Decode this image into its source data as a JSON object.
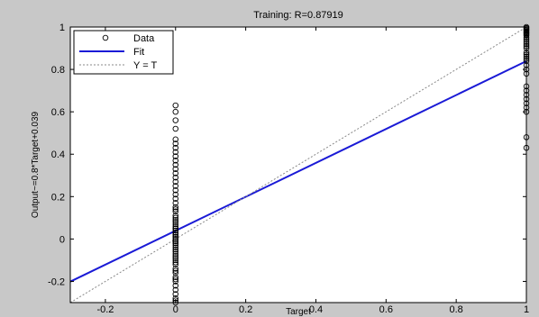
{
  "chart_data": {
    "type": "scatter",
    "title": "Training: R=0.87919",
    "xlabel": "Target",
    "ylabel": "Output~=0.8*Target+0.039",
    "xlim": [
      -0.3,
      1.0
    ],
    "ylim": [
      -0.3,
      1.0
    ],
    "xticks": [
      -0.2,
      0,
      0.2,
      0.4,
      0.6,
      0.8,
      1
    ],
    "xtick_labels": [
      "-0.2",
      "0",
      "0.2",
      "0.4",
      "0.6",
      "0.8",
      "1"
    ],
    "yticks": [
      -0.2,
      0,
      0.2,
      0.4,
      0.6,
      0.8,
      1
    ],
    "ytick_labels": [
      "-0.2",
      "0",
      "0.2",
      "0.4",
      "0.6",
      "0.8",
      "1"
    ],
    "grid": false,
    "legend_position": "top-left",
    "legend": [
      "Data",
      "Fit",
      "Y = T"
    ],
    "series": [
      {
        "name": "Data",
        "kind": "markers",
        "marker": "circle",
        "color": "#000000",
        "x": [
          0,
          0,
          0,
          0,
          0,
          0,
          0,
          0,
          0,
          0,
          0,
          0,
          0,
          0,
          0,
          0,
          0,
          0,
          0,
          0,
          0,
          0,
          0,
          0,
          0,
          0,
          0,
          0,
          0,
          0,
          0,
          0,
          0,
          0,
          0,
          0,
          0,
          0,
          0,
          0,
          0,
          0,
          0,
          0,
          0,
          0,
          0,
          0,
          0,
          0,
          0,
          0,
          0,
          0,
          0,
          0,
          0,
          0,
          0,
          0,
          0,
          0,
          0,
          0,
          0,
          0,
          1,
          1,
          1,
          1,
          1,
          1,
          1,
          1,
          1,
          1,
          1,
          1,
          1,
          1,
          1,
          1,
          1,
          1,
          1,
          1,
          1,
          1,
          1,
          1,
          1,
          1,
          1,
          1,
          1,
          1,
          1,
          1
        ],
        "y": [
          0.63,
          0.6,
          0.56,
          0.52,
          0.47,
          0.45,
          0.43,
          0.41,
          0.39,
          0.37,
          0.35,
          0.33,
          0.31,
          0.29,
          0.27,
          0.25,
          0.23,
          0.21,
          0.19,
          0.17,
          0.15,
          0.13,
          0.11,
          0.09,
          0.08,
          0.07,
          0.06,
          0.05,
          0.04,
          0.03,
          0.02,
          0.01,
          0.0,
          -0.01,
          -0.02,
          -0.03,
          -0.04,
          -0.05,
          -0.06,
          -0.07,
          -0.08,
          -0.09,
          -0.1,
          -0.12,
          -0.14,
          -0.16,
          -0.18,
          -0.2,
          -0.22,
          -0.24,
          -0.26,
          -0.28,
          -0.29,
          -0.3,
          0.0,
          0.01,
          -0.01,
          0.02,
          -0.02,
          0.03,
          0.05,
          0.1,
          0.14,
          -0.11,
          -0.15,
          -0.19,
          0.43,
          0.48,
          0.6,
          0.62,
          0.64,
          0.66,
          0.68,
          0.7,
          0.72,
          0.78,
          0.8,
          0.82,
          0.84,
          0.85,
          0.86,
          0.87,
          0.88,
          0.9,
          0.91,
          0.92,
          0.93,
          0.94,
          0.95,
          0.96,
          0.97,
          0.975,
          0.98,
          0.985,
          0.99,
          0.995,
          1.0,
          0.965
        ]
      },
      {
        "name": "Fit",
        "kind": "line",
        "color": "#1a1ad6",
        "x": [
          -0.3,
          1.0
        ],
        "y": [
          -0.201,
          0.839
        ]
      },
      {
        "name": "Y = T",
        "kind": "line",
        "style": "dotted",
        "color": "#888888",
        "x": [
          -0.3,
          1.0
        ],
        "y": [
          -0.3,
          1.0
        ]
      }
    ]
  }
}
